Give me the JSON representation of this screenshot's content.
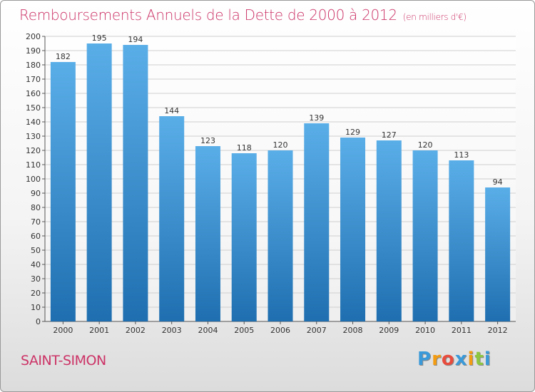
{
  "title": "Remboursements Annuels de la Dette de 2000 à 2012",
  "unit_label": "(en milliers d'€)",
  "town": "SAINT-SIMON",
  "logo": {
    "letters": [
      "P",
      "r",
      "o",
      "x",
      "i",
      "t",
      "i"
    ],
    "colors": [
      "#3a9ad9",
      "#f39c12",
      "#e84c3d",
      "#3a9ad9",
      "#f39c12",
      "#8dc63f",
      "#3a9ad9"
    ]
  },
  "colors": {
    "accent": "#cc3366",
    "bar_top": "#5aaee8",
    "bar_bottom": "#1f6fb0",
    "grid": "#cfcfcf"
  },
  "chart_data": {
    "type": "bar",
    "title": "Remboursements Annuels de la Dette de 2000 à 2012",
    "categories": [
      "2000",
      "2001",
      "2002",
      "2003",
      "2004",
      "2005",
      "2006",
      "2007",
      "2008",
      "2009",
      "2010",
      "2011",
      "2012"
    ],
    "values": [
      182,
      195,
      194,
      144,
      123,
      118,
      120,
      139,
      129,
      127,
      120,
      113,
      94
    ],
    "ylim": [
      0,
      200
    ],
    "ytick_step": 10,
    "grid": true,
    "legend": false,
    "data_labels": true
  }
}
